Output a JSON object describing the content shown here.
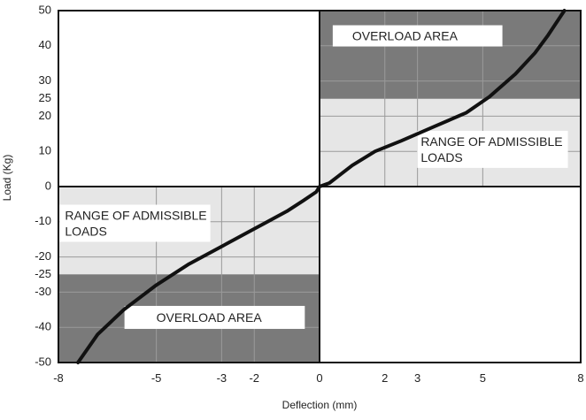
{
  "chart_data": {
    "type": "line",
    "xlabel": "Deflection (mm)",
    "ylabel": "Load (Kg)",
    "xlim": [
      -8,
      8
    ],
    "ylim": [
      -50,
      50
    ],
    "x_ticks": [
      -8,
      -5,
      -3,
      -2,
      0,
      2,
      3,
      5,
      8
    ],
    "y_ticks": [
      50,
      40,
      30,
      25,
      20,
      10,
      0,
      -10,
      -20,
      -25,
      -30,
      -40,
      -50
    ],
    "grid": true,
    "colors": {
      "overload": "#7a7a7a",
      "admissible": "#e6e6e6",
      "grid": "#9a9a9a",
      "curve": "#111111"
    },
    "zones": [
      {
        "kind": "overload",
        "label": "OVERLOAD AREA",
        "x_range": [
          0,
          8
        ],
        "y_range": [
          25,
          50
        ]
      },
      {
        "kind": "admissible",
        "label": "RANGE OF ADMISSIBLE LOADS",
        "x_range": [
          0,
          8
        ],
        "y_range": [
          0,
          25
        ]
      },
      {
        "kind": "admissible",
        "label": "RANGE OF ADMISSIBLE LOADS",
        "x_range": [
          -8,
          0
        ],
        "y_range": [
          -25,
          0
        ]
      },
      {
        "kind": "overload",
        "label": "OVERLOAD AREA",
        "x_range": [
          -8,
          0
        ],
        "y_range": [
          -50,
          -25
        ]
      }
    ],
    "series": [
      {
        "x": [
          -7.4,
          -6.8,
          -6.0,
          -5.0,
          -4.0,
          -3.0,
          -2.0,
          -1.0,
          -0.5,
          -0.1,
          0,
          0.3,
          1.0,
          1.7,
          2.5,
          3.5,
          4.5,
          5.2,
          6.0,
          6.6,
          7.0,
          7.5
        ],
        "y": [
          -50,
          -42,
          -35,
          -28,
          -22,
          -17,
          -12,
          -7,
          -4,
          -1.5,
          0,
          1,
          6,
          10,
          13,
          17,
          21,
          25.5,
          32,
          38,
          43,
          50
        ]
      }
    ],
    "annotations": [
      {
        "text": "OVERLOAD AREA",
        "x": 1.0,
        "y": 42.5
      },
      {
        "text": "RANGE OF ADMISSIBLE",
        "x": 3.1,
        "y": 12.5
      },
      {
        "text": "LOADS",
        "x": 3.1,
        "y": 8.0
      },
      {
        "text": "RANGE OF ADMISSIBLE",
        "x": -7.8,
        "y": -8.5
      },
      {
        "text": "LOADS",
        "x": -7.8,
        "y": -13.0
      },
      {
        "text": "OVERLOAD AREA",
        "x": -5.0,
        "y": -37.5
      }
    ]
  }
}
